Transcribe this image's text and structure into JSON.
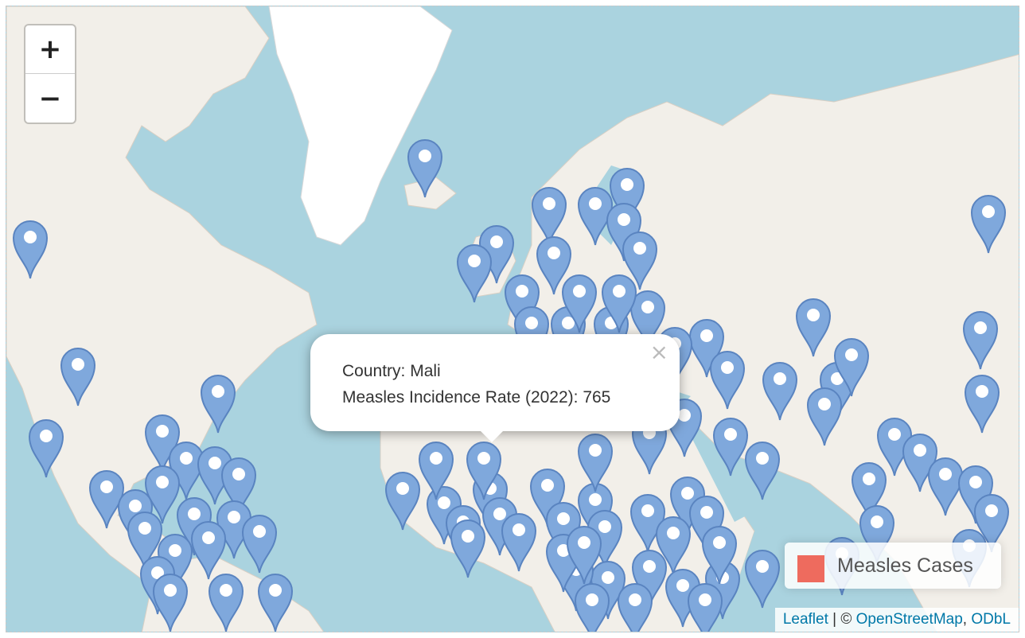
{
  "map": {
    "zoom_in_label": "+",
    "zoom_out_label": "−",
    "colors": {
      "water": "#aad3df",
      "land": "#f2efe9",
      "ice": "#ffffff",
      "marker_fill": "#7fa8dc",
      "marker_stroke": "#5a84c0",
      "legend_swatch": "#ee6b5e"
    },
    "marker_icon": "map-pin-icon"
  },
  "popup": {
    "line1": "Country: Mali",
    "line2": "Measles Incidence Rate (2022): 765",
    "close_label": "×"
  },
  "legend": {
    "label": "Measles Cases"
  },
  "attribution": {
    "leaflet": "Leaflet",
    "sep": " | © ",
    "osm": "OpenStreetMap",
    "comma": ", ",
    "odbl": "ODbL"
  }
}
